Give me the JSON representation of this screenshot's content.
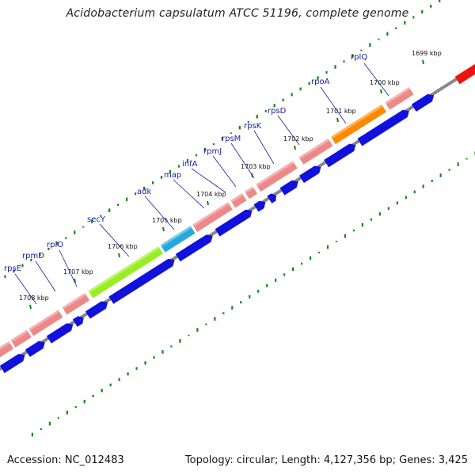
{
  "title": "Acidobacterium capsulatum ATCC 51196, complete genome",
  "footer": {
    "accession": "Accession: NC_012483",
    "summary": "Topology: circular; Length: 4,127,356 bp; Genes: 3,425"
  },
  "colors": {
    "backbone": "#888888",
    "forward_gene": "#ee8888",
    "reverse_gene": "#1111dd",
    "highlight_red": "#ee1111",
    "highlight_orange": "#ff8800",
    "highlight_green": "#99ee22",
    "highlight_cyan": "#22aadd",
    "gc_ticks": "#118811",
    "gene_label": "#1a1aa6"
  },
  "kbp_labels": [
    "1699 kbp",
    "1700 kbp",
    "1701 kbp",
    "1702 kbp",
    "1703 kbp",
    "1704 kbp",
    "1705 kbp",
    "1706 kbp",
    "1707 kbp",
    "1708 kbp"
  ],
  "gene_labels": [
    "rplQ",
    "rpoA",
    "rpsD",
    "rpsK",
    "rpsM",
    "rpmJ",
    "infA",
    "map",
    "adk",
    "secY",
    "rplO",
    "rpmD",
    "rpsE"
  ]
}
